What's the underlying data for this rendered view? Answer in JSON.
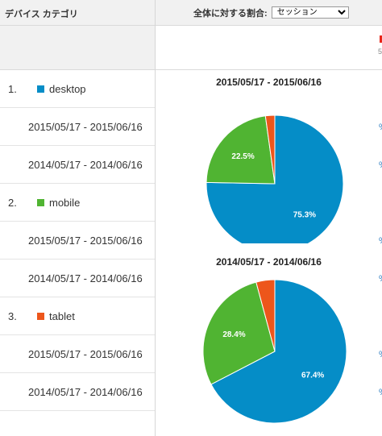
{
  "table": {
    "column_header": "デバイス カテゴリ",
    "groups": [
      {
        "num": "1.",
        "label": "desktop",
        "color": "#058dc7"
      },
      {
        "num": "2.",
        "label": "mobile",
        "color": "#50b432"
      },
      {
        "num": "3.",
        "label": "tablet",
        "color": "#ed561b"
      }
    ],
    "date_ranges": [
      "2015/05/17 - 2015/06/16",
      "2014/05/17 - 2014/06/16"
    ]
  },
  "chart_header": {
    "label": "全体に対する割合:",
    "metric_selected": "セッション",
    "legend_fragment": "5"
  },
  "chart_data": [
    {
      "type": "pie",
      "title": "2015/05/17 - 2015/06/16",
      "categories": [
        "desktop",
        "mobile",
        "tablet"
      ],
      "values": [
        75.3,
        22.5,
        2.2
      ],
      "labels": [
        "75.3%",
        "22.5%",
        ""
      ],
      "colors": [
        "#058dc7",
        "#50b432",
        "#ed561b"
      ]
    },
    {
      "type": "pie",
      "title": "2014/05/17 - 2014/06/16",
      "categories": [
        "desktop",
        "mobile",
        "tablet"
      ],
      "values": [
        67.4,
        28.4,
        4.2
      ],
      "labels": [
        "67.4%",
        "28.4%",
        ""
      ],
      "colors": [
        "#058dc7",
        "#50b432",
        "#ed561b"
      ]
    }
  ]
}
